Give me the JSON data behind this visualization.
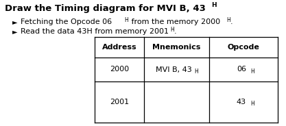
{
  "title_main": "Draw the Timing diagram for MVI B, 43",
  "title_sub": "H",
  "b1_part1": "Fetching the Opcode 06",
  "b1_sub1": "H",
  "b1_part2": " from the memory 2000",
  "b1_sub2": "H",
  "b1_part3": ".",
  "b2_part1": "Read the data 43H from memory 2001",
  "b2_sub1": "H",
  "b2_part2": ".",
  "col_headers": [
    "Address",
    "Mnemonics",
    "Opcode"
  ],
  "row1_addr": "2000",
  "row1_mnem_main": "MVI B, 43",
  "row1_mnem_sub": "H",
  "row1_opc_main": "06",
  "row1_opc_sub": "H",
  "row2_addr": "2001",
  "row2_opc_main": "43",
  "row2_opc_sub": "H",
  "bg_color": "#ffffff",
  "text_color": "#000000",
  "title_fs": 9.5,
  "body_fs": 8.0,
  "sub_fs": 5.5
}
